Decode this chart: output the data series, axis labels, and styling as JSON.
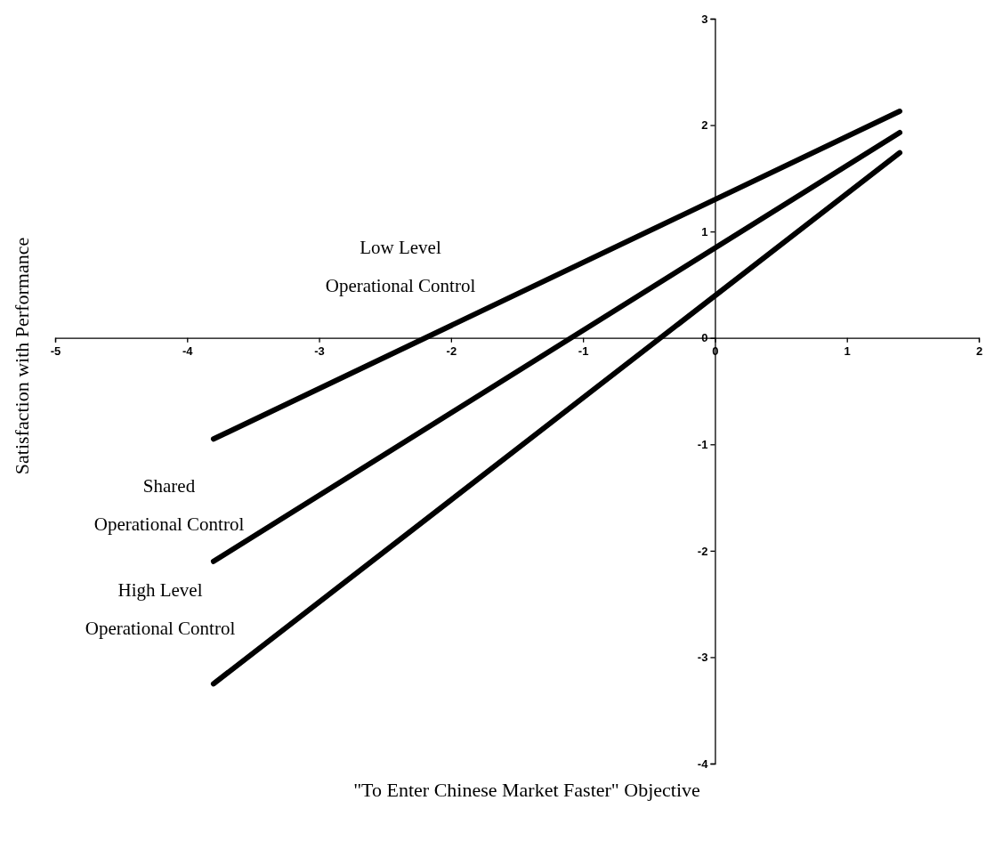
{
  "chart_data": {
    "type": "line",
    "xlabel": "\"To Enter Chinese Market Faster\" Objective",
    "ylabel": "Satisfaction with Performance",
    "xlim": [
      -5,
      2
    ],
    "xticks": [
      -5,
      -4,
      -3,
      -2,
      -1,
      0,
      1,
      2
    ],
    "ylim": [
      -4,
      3
    ],
    "yticks": [
      -4,
      -3,
      -2,
      -1,
      0,
      1,
      2,
      3
    ],
    "grid": false,
    "legend": false,
    "marker": "none",
    "line_style": "solid",
    "x": [
      -3.8,
      1.4
    ],
    "series": [
      {
        "name": "Low Level Operational Control",
        "color": "#000000",
        "values": [
          -0.95,
          2.13
        ]
      },
      {
        "name": "Shared Operational Control",
        "color": "#000000",
        "values": [
          -2.1,
          1.93
        ]
      },
      {
        "name": "High Level Operational Control",
        "color": "#000000",
        "values": [
          -3.25,
          1.74
        ]
      }
    ]
  }
}
